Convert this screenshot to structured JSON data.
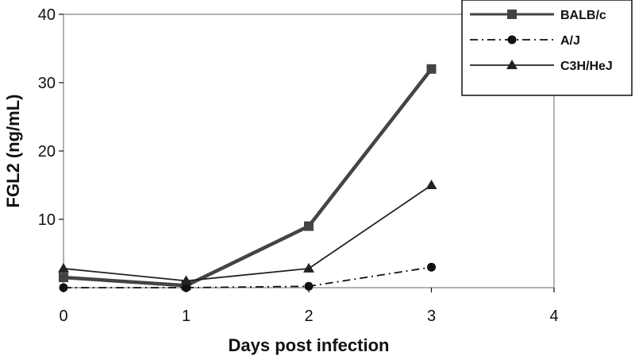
{
  "chart_data": {
    "type": "line",
    "xlabel": "Days post infection",
    "ylabel": "FGL2 (ng/mL)",
    "xlim": [
      0,
      4
    ],
    "ylim": [
      0,
      40
    ],
    "x_ticks": [
      "0",
      "1",
      "2",
      "3",
      "4"
    ],
    "y_ticks": [
      "10",
      "20",
      "30",
      "40"
    ],
    "y_tick_values": [
      10,
      20,
      30,
      40
    ],
    "grid": false,
    "legend_position": "top-right",
    "x": [
      0,
      1,
      2,
      3
    ],
    "series": [
      {
        "name": "BALB/c",
        "values": [
          1.5,
          0.3,
          9,
          32
        ],
        "marker": "square",
        "line_style": "solid-thick",
        "color": "#444444"
      },
      {
        "name": "A/J",
        "values": [
          0,
          0,
          0.2,
          3
        ],
        "marker": "circle",
        "line_style": "dash-dot",
        "color": "#111111"
      },
      {
        "name": "C3H/HeJ",
        "values": [
          2.8,
          1,
          2.8,
          15
        ],
        "marker": "triangle",
        "line_style": "solid",
        "color": "#222222"
      }
    ]
  }
}
